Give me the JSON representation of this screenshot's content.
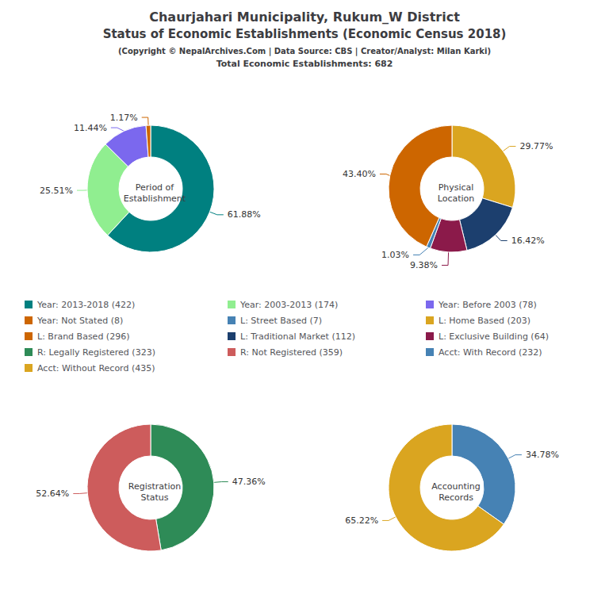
{
  "title": [
    "Chaurjahari Municipality, Rukum_W District",
    "Status of Economic Establishments (Economic Census 2018)"
  ],
  "subtitle": [
    "(Copyright © NepalArchives.Com | Data Source: CBS | Creator/Analyst: Milan Karki)",
    "Total Economic Establishments: 682"
  ],
  "legend_items": [
    {
      "label": "Year: 2013-2018 (422)",
      "color": "#008080"
    },
    {
      "label": "Year: Not Stated (8)",
      "color": "#CD6600"
    },
    {
      "label": "L: Brand Based (296)",
      "color": "#CD6600"
    },
    {
      "label": "R: Legally Registered (323)",
      "color": "#2E8B57"
    },
    {
      "label": "Acct: Without Record (435)",
      "color": "#DAA520"
    },
    {
      "label": "Year: 2003-2013 (174)",
      "color": "#90EE90"
    },
    {
      "label": "L: Street Based (7)",
      "color": "#4682B4"
    },
    {
      "label": "L: Traditional Market (112)",
      "color": "#1C3F6E"
    },
    {
      "label": "R: Not Registered (359)",
      "color": "#CD5C5C"
    },
    {
      "label": "Year: Before 2003 (78)",
      "color": "#7B68EE"
    },
    {
      "label": "L: Home Based (203)",
      "color": "#DAA520"
    },
    {
      "label": "L: Exclusive Building (64)",
      "color": "#8B1A4A"
    },
    {
      "label": "Acct: With Record (232)",
      "color": "#4682B4"
    }
  ],
  "chart_data": [
    {
      "type": "pie",
      "title": "Period of\nEstablishment",
      "categories": [
        "Year: 2013-2018 (422)",
        "Year: 2003-2013 (174)",
        "Year: Before 2003 (78)",
        "Year: Not Stated (8)"
      ],
      "values": [
        61.88,
        25.51,
        11.44,
        1.17
      ],
      "value_labels": [
        "61.88%",
        "25.51%",
        "11.44%",
        "1.17%"
      ],
      "colors": [
        "#008080",
        "#90EE90",
        "#7B68EE",
        "#CD6600"
      ],
      "data_labels": true
    },
    {
      "type": "pie",
      "title": "Physical\nLocation",
      "categories": [
        "L: Home Based (203)",
        "L: Traditional Market (112)",
        "L: Exclusive Building (64)",
        "L: Street Based (7)",
        "L: Brand Based (296)"
      ],
      "values": [
        29.77,
        16.42,
        9.38,
        1.03,
        43.4
      ],
      "value_labels": [
        "29.77%",
        "16.42%",
        "9.38%",
        "1.03%",
        "43.40%"
      ],
      "colors": [
        "#DAA520",
        "#1C3F6E",
        "#8B1A4A",
        "#4682B4",
        "#CD6600"
      ],
      "data_labels": true
    },
    {
      "type": "pie",
      "title": "Registration\nStatus",
      "categories": [
        "R: Legally Registered (323)",
        "R: Not Registered (359)"
      ],
      "values": [
        47.36,
        52.64
      ],
      "value_labels": [
        "47.36%",
        "52.64%"
      ],
      "colors": [
        "#2E8B57",
        "#CD5C5C"
      ],
      "data_labels": true
    },
    {
      "type": "pie",
      "title": "Accounting\nRecords",
      "categories": [
        "Acct: With Record (232)",
        "Acct: Without Record (435)"
      ],
      "values": [
        34.78,
        65.22
      ],
      "value_labels": [
        "34.78%",
        "65.22%"
      ],
      "colors": [
        "#4682B4",
        "#DAA520"
      ],
      "data_labels": true
    }
  ]
}
